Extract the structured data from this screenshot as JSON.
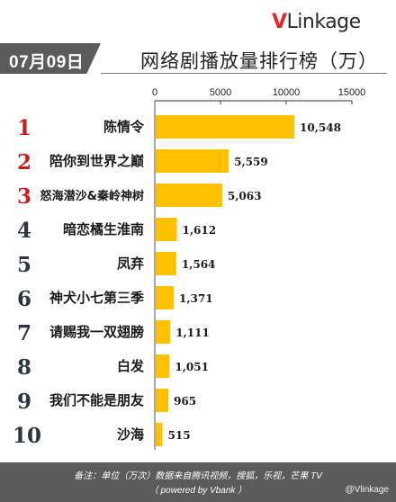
{
  "logo": {
    "v": "V",
    "rest": "Linkage"
  },
  "date": "07月09日",
  "title": "网络剧播放量排行榜（万）",
  "footer": {
    "note": "备注：单位（万次）数据来自腾讯视频，搜狐，乐视，芒果 TV",
    "note2": "（ powered by Vbank ）"
  },
  "watermark": "@Vlinkage",
  "colors": {
    "bar": "#ffc000",
    "accent": "#e8232b",
    "footer": "#5b5b5b",
    "rank_top": "#cc1c1c",
    "rank_rest": "#2c3540"
  },
  "chart_data": {
    "type": "bar",
    "orientation": "horizontal",
    "title": "网络剧播放量排行榜（万）",
    "xlim": [
      0,
      15000
    ],
    "ticks": [
      "0",
      "5000",
      "10000",
      "15000"
    ],
    "ranks": [
      "1",
      "2",
      "3",
      "4",
      "5",
      "6",
      "7",
      "8",
      "9",
      "10"
    ],
    "categories": [
      "陈情令",
      "陪你到世界之巅",
      "怒海潜沙&秦岭神树",
      "暗恋橘生淮南",
      "凤弃",
      "神犬小七第三季",
      "请赐我一双翅膀",
      "白发",
      "我们不能是朋友",
      "沙海"
    ],
    "values": [
      10548,
      5559,
      5063,
      1612,
      1564,
      1371,
      1111,
      1051,
      965,
      515
    ],
    "value_labels": [
      "10,548",
      "5,559",
      "5,063",
      "1,612",
      "1,564",
      "1,371",
      "1,111",
      "1,051",
      "965",
      "515"
    ],
    "grid": false,
    "legend": "none"
  }
}
